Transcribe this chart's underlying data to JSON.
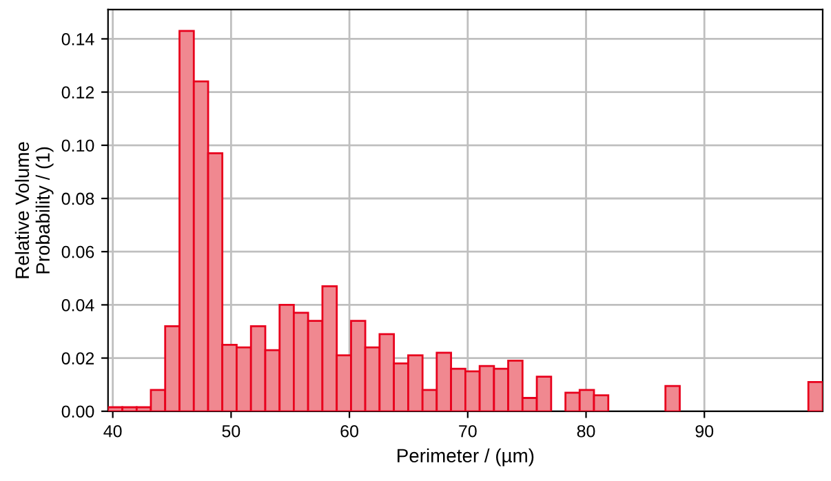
{
  "chart_data": {
    "type": "histogram",
    "xlabel": "Perimeter / (µm)",
    "ylabel": "Relative Volume\nProbability / (1)",
    "bins": [
      39.6,
      40.81,
      42.02,
      43.22,
      44.43,
      45.64,
      46.85,
      48.06,
      49.26,
      50.47,
      51.68,
      52.89,
      54.1,
      55.3,
      56.51,
      57.72,
      58.93,
      60.14,
      61.34,
      62.55,
      63.76,
      64.97,
      66.18,
      67.38,
      68.59,
      69.8,
      71.01,
      72.22,
      73.42,
      74.63,
      75.84,
      77.05,
      78.26,
      79.46,
      80.67,
      81.88,
      83.09,
      84.3,
      85.5,
      86.71,
      87.92,
      89.13,
      90.34,
      91.54,
      92.75,
      93.96,
      95.17,
      96.38,
      97.58,
      98.79,
      100.0
    ],
    "values": [
      0.0015,
      0.0015,
      0.0015,
      0.008,
      0.032,
      0.143,
      0.124,
      0.097,
      0.025,
      0.024,
      0.032,
      0.023,
      0.04,
      0.037,
      0.034,
      0.047,
      0.021,
      0.034,
      0.024,
      0.029,
      0.018,
      0.021,
      0.008,
      0.022,
      0.016,
      0.015,
      0.017,
      0.016,
      0.019,
      0.005,
      0.013,
      0,
      0.007,
      0.008,
      0.006,
      0,
      0,
      0,
      0,
      0.0095,
      0,
      0,
      0,
      0,
      0,
      0,
      0,
      0,
      0,
      0.011
    ],
    "color": "#f08890",
    "xlim": [
      39.6,
      100
    ],
    "ylim": [
      0,
      0.151
    ],
    "xticks": [
      40,
      50,
      60,
      70,
      80,
      90
    ],
    "yticks": [
      {
        "value": 0,
        "label": "0.00"
      },
      {
        "value": 0.02,
        "label": "0.02"
      },
      {
        "value": 0.04,
        "label": "0.04"
      },
      {
        "value": 0.06,
        "label": "0.06"
      },
      {
        "value": 0.08,
        "label": "0.08"
      },
      {
        "value": 0.1,
        "label": "0.10"
      },
      {
        "value": 0.12,
        "label": "0.12"
      },
      {
        "value": 0.14,
        "label": "0.14"
      }
    ],
    "grid": true
  }
}
